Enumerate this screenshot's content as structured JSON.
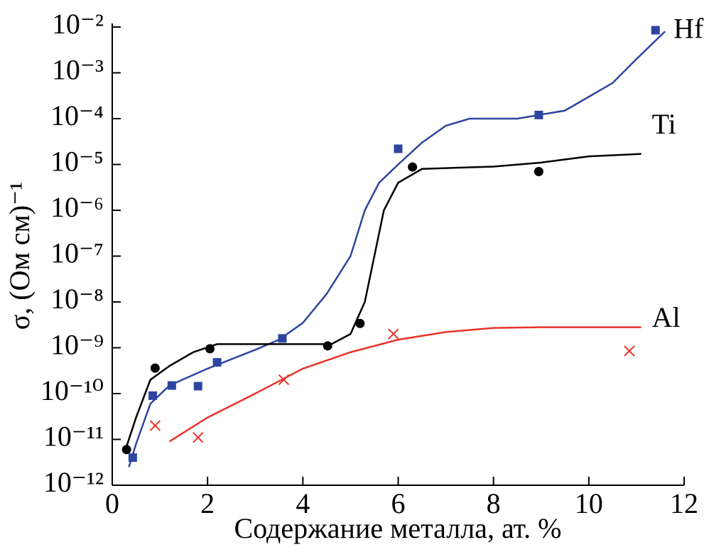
{
  "chart_data": {
    "type": "scatter",
    "x_label": "Содержание металла, ат. %",
    "y_label": "σ, (Ом см)⁻¹",
    "xlim": [
      0,
      12
    ],
    "xticks": [
      0,
      2,
      4,
      6,
      8,
      10,
      12
    ],
    "ylim": [
      1e-12,
      0.01
    ],
    "log_y": true,
    "yticks": [
      {
        "value": 1e-12,
        "label": "10⁻¹²"
      },
      {
        "value": 1e-11,
        "label": "10⁻¹¹"
      },
      {
        "value": 1e-10,
        "label": "10⁻¹⁰"
      },
      {
        "value": 1e-09,
        "label": "10⁻⁹"
      },
      {
        "value": 1e-08,
        "label": "10⁻⁸"
      },
      {
        "value": 1e-07,
        "label": "10⁻⁷"
      },
      {
        "value": 1e-06,
        "label": "10⁻⁶"
      },
      {
        "value": 1e-05,
        "label": "10⁻⁵"
      },
      {
        "value": 0.0001,
        "label": "10⁻⁴"
      },
      {
        "value": 0.001,
        "label": "10⁻³"
      },
      {
        "value": 0.01,
        "label": "10⁻²"
      }
    ],
    "series": [
      {
        "name": "Hf",
        "color": "#2e45a0",
        "marker": "square",
        "x": [
          0.43,
          0.85,
          1.25,
          1.8,
          2.2,
          3.57,
          6.0,
          8.95,
          11.4
        ],
        "values": [
          4e-12,
          9e-11,
          1.5e-10,
          1.45e-10,
          4.8e-10,
          1.6e-09,
          2.2e-05,
          0.00012,
          0.0085
        ],
        "fit_x": [
          0.35,
          0.5,
          0.8,
          1.2,
          2,
          3,
          3.5,
          4,
          4.5,
          5,
          5.3,
          5.6,
          6,
          6.5,
          7,
          7.5,
          8.5,
          9.5,
          10.5,
          11,
          11.6
        ],
        "fit_values": [
          2.5e-12,
          8e-12,
          6e-11,
          1.5e-10,
          3.5e-10,
          9e-10,
          1.5e-09,
          3.5e-09,
          1.5e-08,
          1e-07,
          1e-06,
          4e-06,
          1e-05,
          3e-05,
          7e-05,
          0.0001,
          0.0001,
          0.00015,
          0.0006,
          0.002,
          0.008
        ]
      },
      {
        "name": "Ti",
        "color": "#000000",
        "marker": "circle",
        "x": [
          0.3,
          0.9,
          2.05,
          4.52,
          5.2,
          6.3,
          8.95
        ],
        "values": [
          6e-12,
          3.6e-10,
          9.5e-10,
          1.1e-09,
          3.4e-09,
          8.8e-06,
          7e-06
        ],
        "fit_x": [
          0.3,
          0.5,
          0.8,
          1.2,
          1.7,
          2.2,
          3,
          4,
          4.6,
          5.0,
          5.3,
          5.5,
          5.7,
          6,
          6.5,
          8,
          9,
          10,
          11.1
        ],
        "fit_values": [
          7e-12,
          3e-11,
          2e-10,
          4e-10,
          8e-10,
          1.2e-09,
          1.2e-09,
          1.2e-09,
          1.2e-09,
          2e-09,
          1e-08,
          1e-07,
          1e-06,
          4e-06,
          8e-06,
          9e-06,
          1.1e-05,
          1.5e-05,
          1.7e-05
        ]
      },
      {
        "name": "Al",
        "color": "#e8332a",
        "marker": "cross",
        "x": [
          0.9,
          1.8,
          3.6,
          5.9,
          10.85
        ],
        "values": [
          2e-11,
          1.1e-11,
          2e-10,
          2e-09,
          8.5e-10
        ],
        "fit_x": [
          1.2,
          2,
          3,
          4,
          5,
          6,
          7,
          8,
          9,
          11.1
        ],
        "fit_values": [
          9e-12,
          3e-11,
          1e-10,
          3.5e-10,
          8e-10,
          1.5e-09,
          2.2e-09,
          2.7e-09,
          2.8e-09,
          2.8e-09
        ]
      }
    ]
  }
}
